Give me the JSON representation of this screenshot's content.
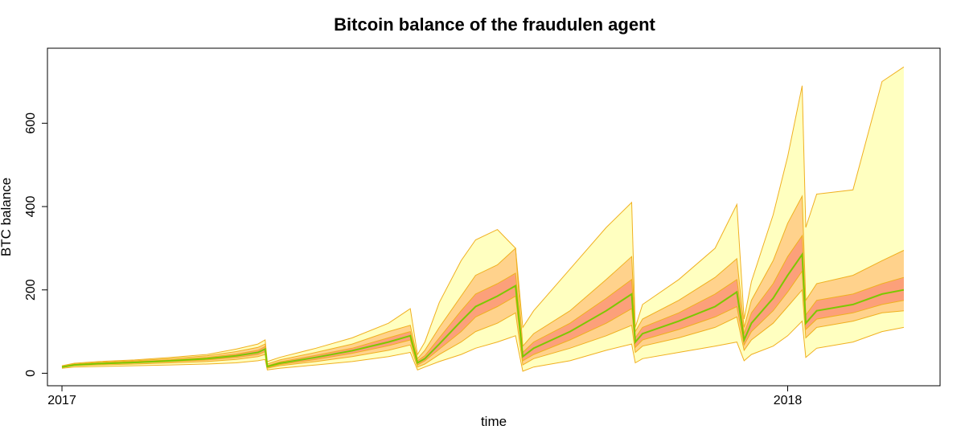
{
  "chart_data": {
    "type": "area",
    "title": "Bitcoin balance of the fraudulen agent",
    "xlabel": "time",
    "ylabel": "BTC balance",
    "xlim": [
      2016.98,
      2018.21
    ],
    "ylim": [
      -30,
      780
    ],
    "x_ticks": [
      {
        "value": 2017,
        "label": "2017"
      },
      {
        "value": 2018,
        "label": "2018"
      }
    ],
    "y_ticks": [
      {
        "value": 0,
        "label": "0"
      },
      {
        "value": 200,
        "label": "200"
      },
      {
        "value": 400,
        "label": "400"
      },
      {
        "value": 600,
        "label": "600"
      }
    ],
    "grid": false,
    "legend": "none",
    "colors": {
      "outer_band": "#ffffc0",
      "middle_band": "#ffd28c",
      "inner_band": "#fca07a",
      "band_edge": "#f0b020",
      "median_line": "#7cc800"
    },
    "x": [
      2017.0,
      2017.017,
      2017.05,
      2017.1,
      2017.15,
      2017.2,
      2017.24,
      2017.27,
      2017.28,
      2017.283,
      2017.3,
      2017.35,
      2017.4,
      2017.45,
      2017.48,
      2017.49,
      2017.5,
      2017.52,
      2017.55,
      2017.57,
      2017.6,
      2017.625,
      2017.635,
      2017.65,
      2017.7,
      2017.75,
      2017.785,
      2017.79,
      2017.8,
      2017.85,
      2017.9,
      2017.93,
      2017.94,
      2017.95,
      2017.98,
      2018.0,
      2018.02,
      2018.025,
      2018.04,
      2018.09,
      2018.13,
      2018.16
    ],
    "series": [
      {
        "name": "",
        "role": "outer-lower",
        "values": [
          12,
          15,
          16,
          18,
          20,
          22,
          25,
          30,
          33,
          8,
          12,
          20,
          28,
          40,
          50,
          8,
          15,
          28,
          45,
          60,
          75,
          90,
          5,
          15,
          30,
          55,
          70,
          25,
          35,
          50,
          65,
          75,
          30,
          45,
          65,
          90,
          125,
          38,
          60,
          75,
          100,
          110
        ]
      },
      {
        "name": "",
        "role": "middle-lower",
        "values": [
          14,
          18,
          20,
          22,
          25,
          28,
          33,
          40,
          45,
          12,
          18,
          28,
          40,
          55,
          68,
          15,
          22,
          45,
          75,
          100,
          120,
          145,
          20,
          35,
          60,
          90,
          115,
          50,
          65,
          85,
          110,
          135,
          55,
          80,
          120,
          160,
          200,
          85,
          110,
          125,
          145,
          150
        ]
      },
      {
        "name": "",
        "role": "inner-lower",
        "values": [
          15,
          20,
          22,
          25,
          28,
          32,
          38,
          45,
          52,
          14,
          21,
          33,
          48,
          66,
          80,
          20,
          30,
          58,
          100,
          135,
          160,
          185,
          30,
          45,
          80,
          120,
          155,
          62,
          80,
          105,
          135,
          160,
          68,
          100,
          150,
          195,
          245,
          105,
          130,
          145,
          165,
          175
        ]
      },
      {
        "name": "",
        "role": "median",
        "values": [
          15,
          20,
          23,
          26,
          30,
          35,
          42,
          50,
          58,
          16,
          24,
          38,
          54,
          75,
          90,
          25,
          35,
          70,
          125,
          160,
          185,
          210,
          40,
          60,
          100,
          150,
          190,
          75,
          95,
          125,
          160,
          195,
          80,
          120,
          180,
          235,
          285,
          120,
          150,
          165,
          190,
          200
        ]
      },
      {
        "name": "",
        "role": "inner-upper",
        "values": [
          16,
          21,
          24,
          28,
          32,
          38,
          46,
          55,
          64,
          18,
          27,
          43,
          60,
          85,
          100,
          30,
          42,
          85,
          150,
          190,
          215,
          240,
          50,
          75,
          120,
          180,
          225,
          85,
          110,
          145,
          190,
          225,
          95,
          145,
          215,
          280,
          330,
          140,
          175,
          190,
          215,
          230
        ]
      },
      {
        "name": "",
        "role": "middle-upper",
        "values": [
          17,
          22,
          26,
          30,
          35,
          42,
          52,
          62,
          70,
          22,
          32,
          50,
          70,
          100,
          115,
          35,
          55,
          110,
          185,
          235,
          260,
          300,
          65,
          95,
          150,
          225,
          280,
          100,
          130,
          175,
          230,
          275,
          110,
          175,
          270,
          360,
          425,
          175,
          215,
          235,
          270,
          295
        ]
      },
      {
        "name": "",
        "role": "outer-upper",
        "values": [
          18,
          24,
          28,
          32,
          38,
          45,
          58,
          70,
          80,
          28,
          38,
          60,
          85,
          120,
          155,
          45,
          75,
          170,
          270,
          320,
          345,
          300,
          110,
          150,
          250,
          350,
          410,
          110,
          165,
          225,
          300,
          405,
          130,
          220,
          380,
          520,
          690,
          350,
          430,
          440,
          700,
          735
        ]
      }
    ]
  }
}
